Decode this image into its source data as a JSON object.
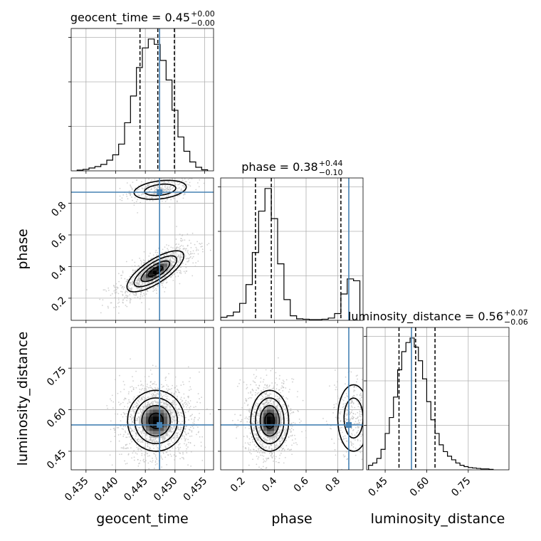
{
  "chart_data": {
    "type": "corner",
    "parameters": [
      "geocent_time",
      "phase",
      "luminosity_distance"
    ],
    "titles": [
      {
        "name": "geocent_time",
        "median": "0.45",
        "plus": "+0.00",
        "minus": "−0.00"
      },
      {
        "name": "phase",
        "median": "0.38",
        "plus": "+0.44",
        "minus": "−0.10"
      },
      {
        "name": "luminosity_distance",
        "median": "0.56",
        "plus": "+0.07",
        "minus": "−0.06"
      }
    ],
    "axis_labels": {
      "x": [
        "geocent_time",
        "phase",
        "luminosity_distance"
      ],
      "y": [
        "phase",
        "luminosity_distance"
      ]
    },
    "ranges": {
      "geocent_time": [
        0.4325,
        0.4565
      ],
      "phase": [
        0.06,
        0.96
      ],
      "luminosity_distance": [
        0.383,
        0.897
      ]
    },
    "ticks": {
      "geocent_time": [
        0.435,
        0.44,
        0.445,
        0.45,
        0.455
      ],
      "phase": [
        0.2,
        0.4,
        0.6,
        0.8
      ],
      "luminosity_distance": [
        0.45,
        0.6,
        0.75
      ]
    },
    "tick_labels": {
      "geocent_time": [
        "0.435",
        "0.440",
        "0.445",
        "0.450",
        "0.455"
      ],
      "phase": [
        "0.2",
        "0.4",
        "0.6",
        "0.8"
      ],
      "luminosity_distance": [
        "0.45",
        "0.60",
        "0.75"
      ]
    },
    "histograms": {
      "geocent_time": {
        "edges": [
          0.4335,
          0.4345,
          0.4355,
          0.4365,
          0.4375,
          0.4385,
          0.4395,
          0.4405,
          0.4415,
          0.4425,
          0.4435,
          0.4445,
          0.4455,
          0.4465,
          0.4475,
          0.4485,
          0.4495,
          0.4505,
          0.4515,
          0.4525,
          0.4535,
          0.4545,
          0.4555
        ],
        "counts": [
          2,
          4,
          8,
          12,
          18,
          30,
          45,
          75,
          135,
          210,
          290,
          345,
          370,
          355,
          310,
          255,
          170,
          95,
          55,
          25,
          10,
          3
        ]
      },
      "phase": {
        "edges": [
          0.06,
          0.1,
          0.14,
          0.18,
          0.22,
          0.26,
          0.3,
          0.34,
          0.38,
          0.42,
          0.46,
          0.5,
          0.54,
          0.58,
          0.62,
          0.66,
          0.7,
          0.74,
          0.78,
          0.82,
          0.86,
          0.9,
          0.94
        ],
        "counts": [
          8,
          12,
          22,
          45,
          95,
          180,
          290,
          350,
          270,
          150,
          55,
          12,
          4,
          3,
          2,
          2,
          3,
          6,
          18,
          70,
          110,
          105
        ]
      },
      "luminosity_distance": {
        "edges": [
          0.39,
          0.405,
          0.42,
          0.435,
          0.45,
          0.465,
          0.48,
          0.495,
          0.51,
          0.525,
          0.54,
          0.555,
          0.57,
          0.585,
          0.6,
          0.615,
          0.63,
          0.645,
          0.66,
          0.675,
          0.69,
          0.705,
          0.72,
          0.735,
          0.75,
          0.765,
          0.78,
          0.795,
          0.81,
          0.825,
          0.84
        ],
        "counts": [
          10,
          15,
          25,
          45,
          80,
          115,
          160,
          220,
          260,
          280,
          290,
          270,
          240,
          200,
          150,
          110,
          80,
          55,
          40,
          30,
          22,
          15,
          10,
          7,
          5,
          4,
          3,
          2,
          2,
          1
        ]
      }
    },
    "quantiles": {
      "geocent_time": [
        0.4441,
        0.4471,
        0.4499
      ],
      "phase": [
        0.28,
        0.38,
        0.82
      ],
      "luminosity_distance": [
        0.5,
        0.56,
        0.63
      ]
    },
    "truths": {
      "geocent_time": 0.4474,
      "phase": 0.87,
      "luminosity_distance": 0.545
    },
    "densities": {
      "phase_vs_geocent_time": [
        {
          "cx": 0.4467,
          "cy": 0.37,
          "sx": 0.0024,
          "sy": 0.065,
          "rho": 0.75,
          "w": 0.78
        },
        {
          "cx": 0.4475,
          "cy": 0.885,
          "sx": 0.0022,
          "sy": 0.03,
          "rho": 0.3,
          "w": 0.22
        }
      ],
      "luminosity_distance_vs_geocent_time": [
        {
          "cx": 0.4468,
          "cy": 0.56,
          "sx": 0.0024,
          "sy": 0.055,
          "rho": 0.0,
          "w": 1.0
        }
      ],
      "luminosity_distance_vs_phase": [
        {
          "cx": 0.37,
          "cy": 0.56,
          "sx": 0.06,
          "sy": 0.055,
          "rho": 0.0,
          "w": 0.78
        },
        {
          "cx": 0.9,
          "cy": 0.57,
          "sx": 0.05,
          "sy": 0.06,
          "rho": 0.0,
          "w": 0.22
        }
      ]
    },
    "colors": {
      "truth": "#4682b4",
      "line": "#000000",
      "grid": "#b0b0b0",
      "sample": "#bdbdbd"
    }
  }
}
